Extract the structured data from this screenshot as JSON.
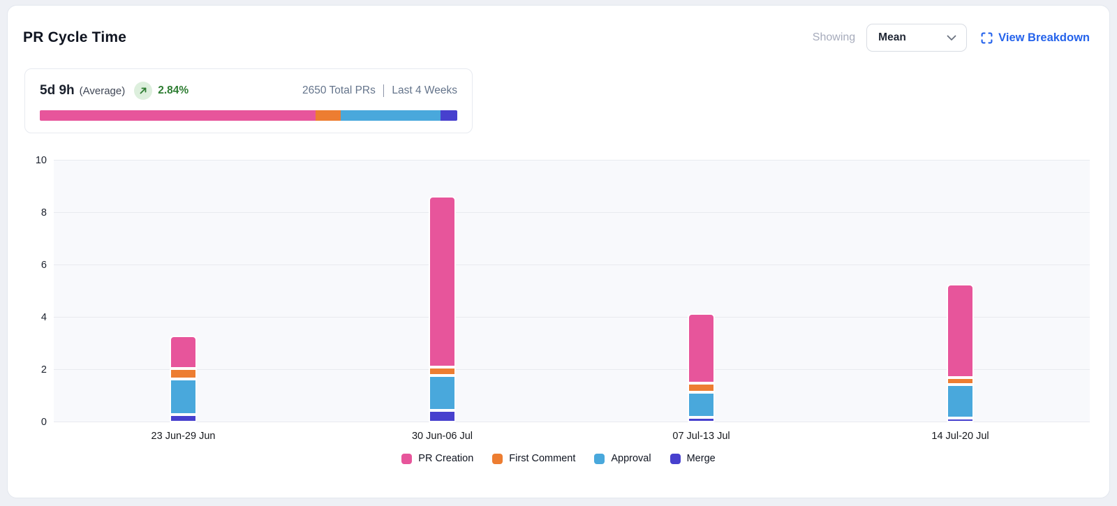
{
  "header": {
    "title": "PR Cycle Time",
    "showing_label": "Showing",
    "metric_select": {
      "value": "Mean"
    },
    "view_breakdown": {
      "label": "View Breakdown",
      "color": "#2563eb"
    }
  },
  "summary": {
    "value": "5d 9h",
    "qualifier": "(Average)",
    "delta": {
      "value": "2.84%",
      "direction": "up",
      "color": "#2e7d32"
    },
    "meta": {
      "total": "2650 Total PRs",
      "period": "Last 4 Weeks"
    },
    "distribution": [
      {
        "name": "PR Creation",
        "color": "#e7559b",
        "percent": 66
      },
      {
        "name": "First Comment",
        "color": "#ed7d31",
        "percent": 6
      },
      {
        "name": "Approval",
        "color": "#49a8dc",
        "percent": 24
      },
      {
        "name": "Merge",
        "color": "#4740ce",
        "percent": 4
      }
    ]
  },
  "chart_data": {
    "type": "bar",
    "stacked": true,
    "title": "PR Cycle Time",
    "unit": "days",
    "categories": [
      "23 Jun-29 Jun",
      "30 Jun-06 Jul",
      "07 Jul-13 Jul",
      "14 Jul-20 Jul"
    ],
    "series": [
      {
        "name": "PR Creation",
        "color": "#e7559b",
        "values": [
          1.25,
          6.55,
          2.65,
          3.55
        ]
      },
      {
        "name": "First Comment",
        "color": "#ed7d31",
        "values": [
          0.4,
          0.3,
          0.35,
          0.27
        ]
      },
      {
        "name": "Approval",
        "color": "#49a8dc",
        "values": [
          1.35,
          1.35,
          0.95,
          1.3
        ]
      },
      {
        "name": "Merge",
        "color": "#4740ce",
        "values": [
          0.3,
          0.45,
          0.2,
          0.15
        ]
      }
    ],
    "totals": [
      3.3,
      8.65,
      4.15,
      5.27
    ],
    "stack_order_bottom_to_top": [
      "Merge",
      "Approval",
      "First Comment",
      "PR Creation"
    ],
    "ylim": [
      0,
      10
    ],
    "yticks": [
      0,
      2,
      4,
      6,
      8,
      10
    ],
    "grid": true,
    "legend_position": "bottom"
  }
}
